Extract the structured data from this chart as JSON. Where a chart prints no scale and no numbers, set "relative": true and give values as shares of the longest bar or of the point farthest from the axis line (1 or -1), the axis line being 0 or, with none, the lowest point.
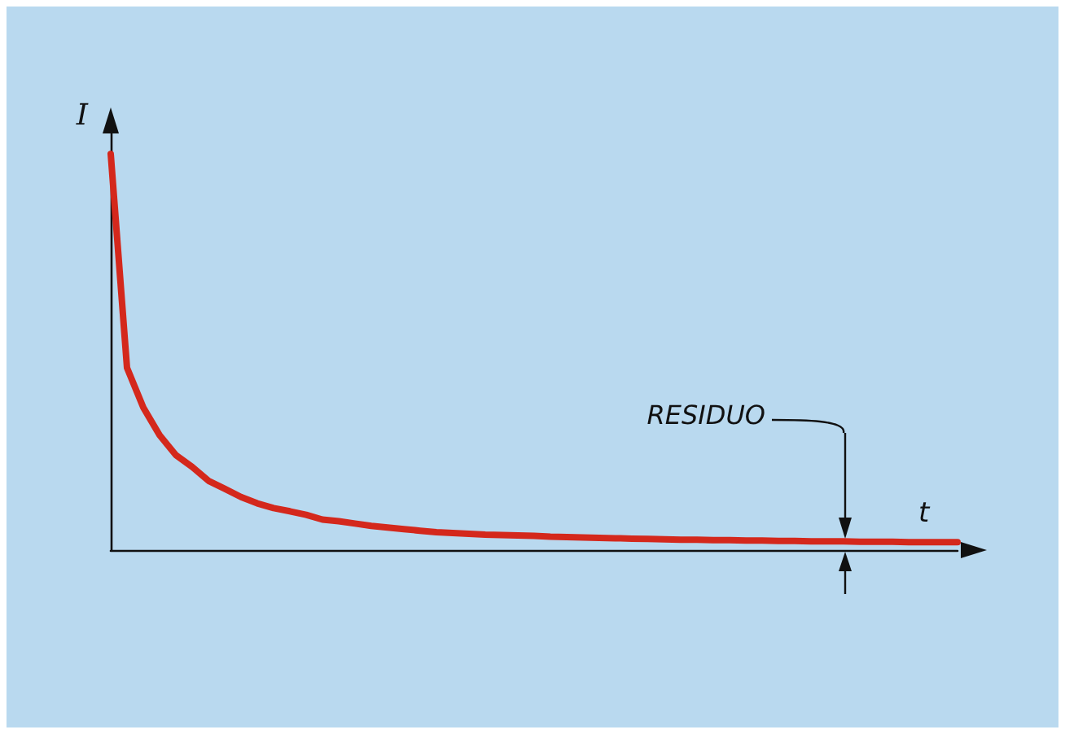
{
  "chart_data": {
    "type": "line",
    "relative": true,
    "xlabel": "t",
    "ylabel": "I",
    "annotations": [
      "RESIDUO"
    ],
    "grid": false,
    "marker": "none",
    "line_style": "solid",
    "categories": [
      null,
      null,
      null,
      null,
      null,
      null,
      null,
      null,
      null,
      null,
      null,
      null,
      null,
      null,
      null,
      null,
      null,
      null,
      null,
      null,
      null,
      null,
      null,
      null,
      null,
      null,
      null,
      null,
      null,
      null,
      null,
      null,
      null,
      null,
      null,
      null,
      null,
      null,
      null,
      null,
      null,
      null,
      null,
      null,
      null,
      null,
      null,
      null,
      null,
      null,
      null,
      null,
      null
    ],
    "series": [
      {
        "color": "#d4281c",
        "values": [
          1.0,
          0.46,
          0.36,
          0.29,
          0.24,
          0.21,
          0.175,
          0.155,
          0.134,
          0.118,
          0.106,
          0.098,
          0.089,
          0.077,
          0.073,
          0.067,
          0.061,
          0.057,
          0.053,
          0.049,
          0.045,
          0.043,
          0.041,
          0.039,
          0.038,
          0.037,
          0.036,
          0.034,
          0.033,
          0.032,
          0.031,
          0.03,
          0.029,
          0.028,
          0.027,
          0.026,
          0.026,
          0.025,
          0.025,
          0.024,
          0.024,
          0.023,
          0.023,
          0.022,
          0.022,
          0.022,
          0.021,
          0.021,
          0.021,
          0.02,
          0.02,
          0.02,
          0.02
        ]
      }
    ]
  }
}
